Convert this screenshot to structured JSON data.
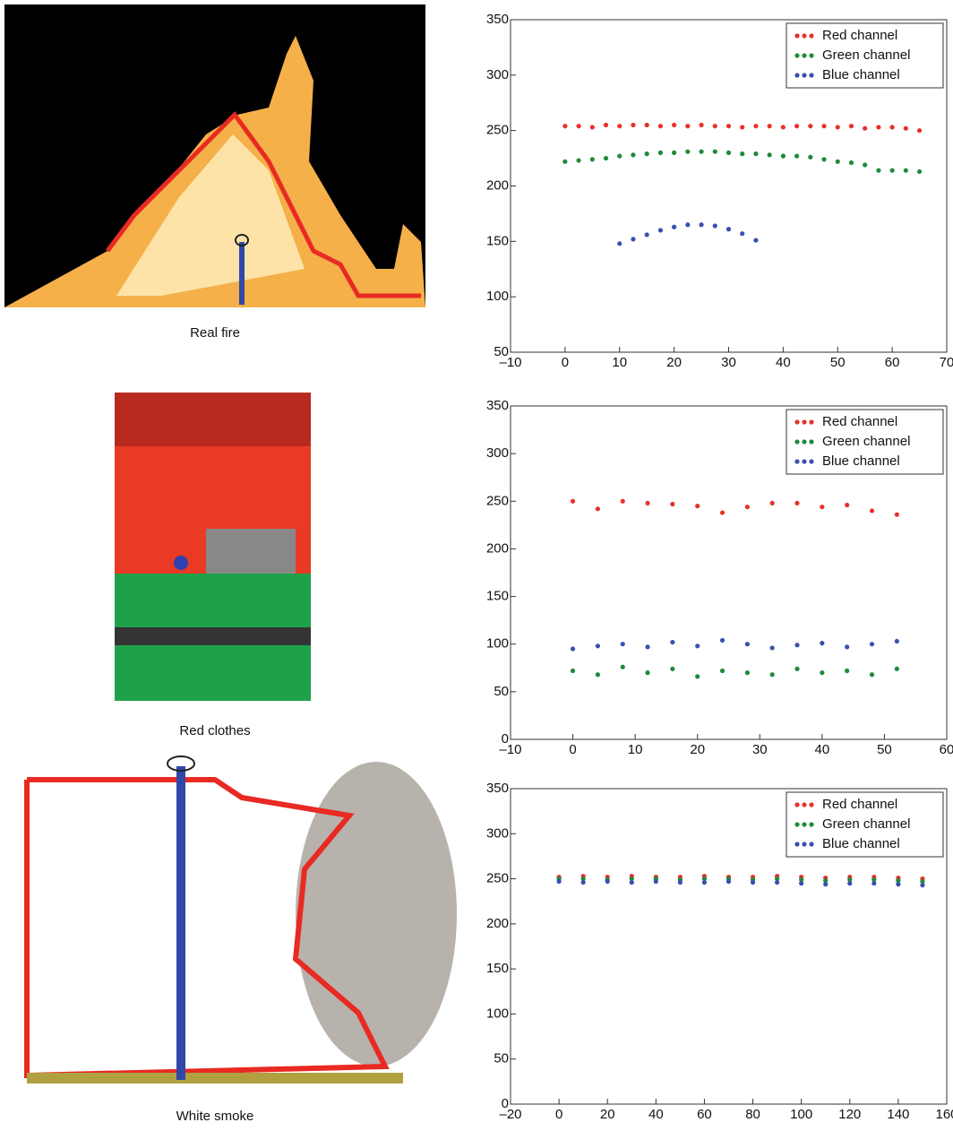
{
  "chart_data": [
    {
      "type": "scatter",
      "caption": "Real fire",
      "x": [
        0,
        2.5,
        5,
        7.5,
        10,
        12.5,
        15,
        17.5,
        20,
        22.5,
        25,
        27.5,
        30,
        32.5,
        35,
        37.5,
        40,
        42.5,
        45,
        47.5,
        50,
        52.5,
        55,
        57.5,
        60,
        62.5,
        65
      ],
      "series": [
        {
          "name": "Red channel",
          "color": "#e8302a",
          "values": [
            254,
            254,
            253,
            255,
            254,
            255,
            255,
            254,
            255,
            254,
            255,
            254,
            254,
            253,
            254,
            254,
            253,
            254,
            254,
            254,
            253,
            254,
            252,
            253,
            253,
            252,
            250
          ]
        },
        {
          "name": "Green channel",
          "color": "#1f8a3a",
          "values": [
            222,
            223,
            224,
            225,
            227,
            228,
            229,
            230,
            230,
            231,
            231,
            231,
            230,
            229,
            229,
            228,
            227,
            227,
            226,
            224,
            222,
            221,
            219,
            214,
            214,
            214,
            213
          ]
        },
        {
          "name": "Blue channel",
          "color": "#3a4fb0",
          "values": [
            null,
            null,
            null,
            null,
            148,
            152,
            156,
            160,
            163,
            165,
            165,
            164,
            161,
            157,
            151,
            null,
            null,
            null,
            null,
            null,
            null,
            null,
            null,
            null,
            null,
            null,
            null
          ]
        }
      ],
      "xlim": [
        -10,
        70
      ],
      "xticks": [
        {
          "value": -10,
          "label": "–10"
        },
        0,
        10,
        20,
        30,
        40,
        50,
        60,
        70
      ],
      "ylim": [
        50,
        350
      ],
      "yticks": [
        50,
        100,
        150,
        200,
        250,
        300,
        350
      ],
      "legend": "upper right"
    },
    {
      "type": "scatter",
      "caption": "Red clothes",
      "x": [
        0,
        4,
        8,
        12,
        16,
        20,
        24,
        28,
        32,
        36,
        40,
        44,
        48,
        52
      ],
      "series": [
        {
          "name": "Red channel",
          "color": "#e8302a",
          "values": [
            250,
            242,
            250,
            248,
            247,
            245,
            238,
            244,
            248,
            248,
            244,
            246,
            240,
            236
          ]
        },
        {
          "name": "Green channel",
          "color": "#1f8a3a",
          "values": [
            72,
            68,
            76,
            70,
            74,
            66,
            72,
            70,
            68,
            74,
            70,
            72,
            68,
            74
          ]
        },
        {
          "name": "Blue channel",
          "color": "#3a4fb0",
          "values": [
            95,
            98,
            100,
            97,
            102,
            98,
            104,
            100,
            96,
            99,
            101,
            97,
            100,
            103
          ]
        }
      ],
      "xlim": [
        -10,
        60
      ],
      "xticks": [
        {
          "value": -10,
          "label": "–10"
        },
        0,
        10,
        20,
        30,
        40,
        50,
        60
      ],
      "ylim": [
        0,
        350
      ],
      "yticks": [
        0,
        50,
        100,
        150,
        200,
        250,
        300,
        350
      ],
      "legend": "upper right"
    },
    {
      "type": "scatter",
      "caption": "White smoke",
      "x": [
        0,
        10,
        20,
        30,
        40,
        50,
        60,
        70,
        80,
        90,
        100,
        110,
        120,
        130,
        140,
        150
      ],
      "series": [
        {
          "name": "Red channel",
          "color": "#e8302a",
          "values": [
            252,
            253,
            252,
            253,
            252,
            252,
            253,
            252,
            252,
            253,
            252,
            251,
            252,
            252,
            251,
            250
          ]
        },
        {
          "name": "Green channel",
          "color": "#1f8a3a",
          "values": [
            250,
            250,
            249,
            250,
            250,
            249,
            250,
            250,
            249,
            250,
            249,
            248,
            249,
            249,
            248,
            247
          ]
        },
        {
          "name": "Blue channel",
          "color": "#3a4fb0",
          "values": [
            247,
            246,
            247,
            246,
            247,
            246,
            246,
            247,
            246,
            246,
            245,
            244,
            245,
            245,
            244,
            243
          ]
        }
      ],
      "xlim": [
        -20,
        160
      ],
      "xticks": [
        {
          "value": -20,
          "label": "–20"
        },
        0,
        20,
        40,
        60,
        80,
        100,
        120,
        140,
        160
      ],
      "ylim": [
        0,
        350
      ],
      "yticks": [
        0,
        50,
        100,
        150,
        200,
        250,
        300,
        350
      ],
      "legend": "upper right"
    }
  ]
}
